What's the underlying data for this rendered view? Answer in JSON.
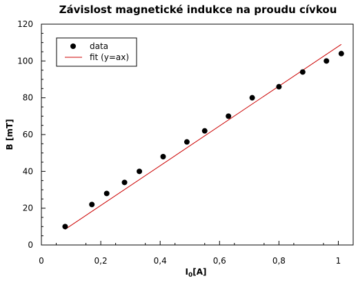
{
  "chart_data": {
    "type": "scatter",
    "title": "Závislost magnetické indukce na proudu cívkou",
    "xlabel_main": "I",
    "xlabel_sub": "0",
    "xlabel_rest": "[A]",
    "ylabel": "B [mT]",
    "xlim": [
      0,
      1.05
    ],
    "ylim": [
      0,
      120
    ],
    "x_ticks": [
      0,
      0.2,
      0.4,
      0.6,
      0.8,
      1
    ],
    "x_tick_labels": [
      "0",
      "0,2",
      "0,4",
      "0,6",
      "0,8",
      "1"
    ],
    "y_ticks": [
      0,
      20,
      40,
      60,
      80,
      100,
      120
    ],
    "y_tick_labels": [
      "0",
      "20",
      "40",
      "60",
      "80",
      "100",
      "120"
    ],
    "legend_position": "top-left",
    "series": [
      {
        "name": "data",
        "kind": "points",
        "color": "#000000",
        "x": [
          0.08,
          0.17,
          0.22,
          0.28,
          0.33,
          0.41,
          0.49,
          0.55,
          0.63,
          0.71,
          0.8,
          0.88,
          0.96,
          1.01
        ],
        "y": [
          10,
          22,
          28,
          34,
          40,
          48,
          56,
          62,
          70,
          80,
          86,
          94,
          100,
          104
        ]
      },
      {
        "name": "fit (y=ax)",
        "kind": "line",
        "color": "#cc0000",
        "x": [
          0.08,
          1.01
        ],
        "y": [
          8.5,
          109
        ]
      }
    ]
  }
}
